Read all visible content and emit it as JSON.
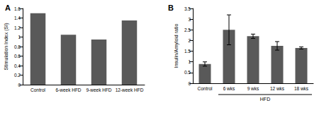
{
  "chart_data": [
    {
      "type": "bar",
      "title": "A",
      "y_label": "Stimulation Index (SI)",
      "categories": [
        "Control",
        "6-week HFD",
        "9-week HFD",
        "12-week HFD"
      ],
      "values": [
        1.5,
        1.05,
        0.95,
        1.35
      ],
      "color": "#595959",
      "ylim": [
        0,
        1.6
      ],
      "yticks": [
        0,
        0.2,
        0.4,
        0.6,
        0.8,
        1,
        1.2,
        1.4,
        1.6
      ],
      "grid": false
    },
    {
      "type": "bar",
      "title": "B",
      "y_label": "Insulin/Amyloid ratio",
      "categories": [
        "Control",
        "6 wks",
        "9 wks",
        "12 wks",
        "18 wks"
      ],
      "values": [
        0.9,
        2.5,
        2.2,
        1.75,
        1.65
      ],
      "errors": [
        0.1,
        0.7,
        0.1,
        0.2,
        0.05
      ],
      "groups": [
        {
          "label": "HFD",
          "categories": [
            "6 wks",
            "9 wks",
            "12 wks",
            "18 wks"
          ]
        }
      ],
      "color": "#595959",
      "ylim": [
        0,
        3.5
      ],
      "yticks": [
        0,
        0.5,
        1,
        1.5,
        2,
        2.5,
        3,
        3.5
      ],
      "grid": false
    }
  ]
}
